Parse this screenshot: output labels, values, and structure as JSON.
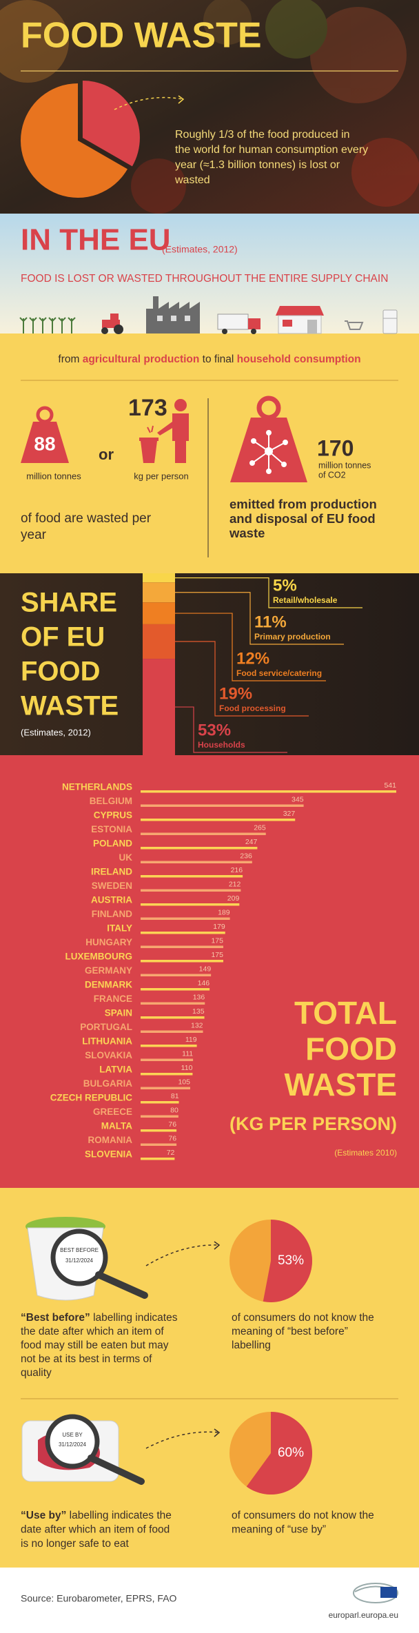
{
  "header": {
    "title": "FOOD WASTE",
    "pie": {
      "value": 33.3,
      "color": "#d9434a",
      "rest_color": "#e8741f"
    },
    "text_lines": [
      "Roughly 1/3 of the food produced in",
      "the world for human consumption every",
      "year (≈1.3 billion tonnes) is lost or",
      "wasted"
    ]
  },
  "eu": {
    "title": "IN THE EU",
    "note": "(Estimates, 2012)",
    "subtitle": "FOOD IS LOST OR WASTED THROUGHOUT THE ENTIRE SUPPLY CHAIN",
    "chain": [
      "from ",
      "agricultural production",
      " to final ",
      "household consumption"
    ]
  },
  "stats": {
    "food_value": 88,
    "food_unit": "million tonnes",
    "or": "or",
    "person_value": 173,
    "person_unit": "kg per person",
    "food_caption": [
      "of food are wasted per",
      "year"
    ],
    "co2_value": 170,
    "co2_unit": [
      "million tonnes",
      "of CO2"
    ],
    "co2_caption": [
      "emitted from production",
      "and disposal of EU food",
      "waste"
    ]
  },
  "share": {
    "title_lines": [
      "SHARE",
      "OF EU",
      "FOOD",
      "WASTE"
    ],
    "note": "(Estimates, 2012)",
    "segments": [
      {
        "label": "Retail/wholesale",
        "value": 5,
        "value_label": "5%",
        "color": "#f9d64a"
      },
      {
        "label": "Primary production",
        "value": 11,
        "value_label": "11%",
        "color": "#f4a83a"
      },
      {
        "label": "Food service/catering",
        "value": 12,
        "value_label": "12%",
        "color": "#ef7f22"
      },
      {
        "label": "Food processing",
        "value": 19,
        "value_label": "19%",
        "color": "#e35a2c"
      },
      {
        "label": "Households",
        "value": 53,
        "value_label": "53%",
        "color": "#d9434a"
      }
    ]
  },
  "total": {
    "title_lines": [
      "TOTAL",
      "FOOD",
      "WASTE"
    ],
    "unit": "(KG PER PERSON)",
    "note": "(Estimates 2010)",
    "colors": [
      "#fbd455",
      "#f7a770"
    ],
    "categories": [
      "NETHERLANDS",
      "BELGIUM",
      "CYPRUS",
      "ESTONIA",
      "POLAND",
      "UK",
      "IRELAND",
      "SWEDEN",
      "AUSTRIA",
      "FINLAND",
      "ITALY",
      "HUNGARY",
      "LUXEMBOURG",
      "GERMANY",
      "DENMARK",
      "FRANCE",
      "SPAIN",
      "PORTUGAL",
      "LITHUANIA",
      "SLOVAKIA",
      "LATVIA",
      "BULGARIA",
      "CZECH REPUBLIC",
      "GREECE",
      "MALTA",
      "ROMANIA",
      "SLOVENIA"
    ],
    "values": [
      541,
      345,
      327,
      265,
      247,
      236,
      216,
      212,
      209,
      189,
      179,
      175,
      175,
      149,
      146,
      136,
      135,
      132,
      119,
      111,
      110,
      105,
      81,
      80,
      76,
      76,
      72
    ]
  },
  "best_before": {
    "stamp_lines": [
      "BEST BEFORE",
      "31/12/2024"
    ],
    "bold": "“Best before”",
    "lines": [
      " labelling indicates",
      "the date after which an item of",
      "food may still be eaten but may",
      "not be at its best in terms of",
      "quality"
    ],
    "pie": {
      "value": 53,
      "value_label": "53%"
    },
    "caption": [
      "of consumers do not know the",
      "meaning of “best before”",
      "labelling"
    ]
  },
  "use_by": {
    "stamp_lines": [
      "USE BY",
      "31/12/2024"
    ],
    "bold": "“Use by”",
    "lines": [
      " labelling indicates the",
      "date after which an item of food",
      "is no longer safe to eat"
    ],
    "pie": {
      "value": 60,
      "value_label": "60%"
    },
    "caption": [
      "of consumers do not know the",
      "meaning of “use by”"
    ]
  },
  "footer": {
    "source": "Source: Eurobarometer, EPRS, FAO",
    "site": "europarl.europa.eu"
  }
}
